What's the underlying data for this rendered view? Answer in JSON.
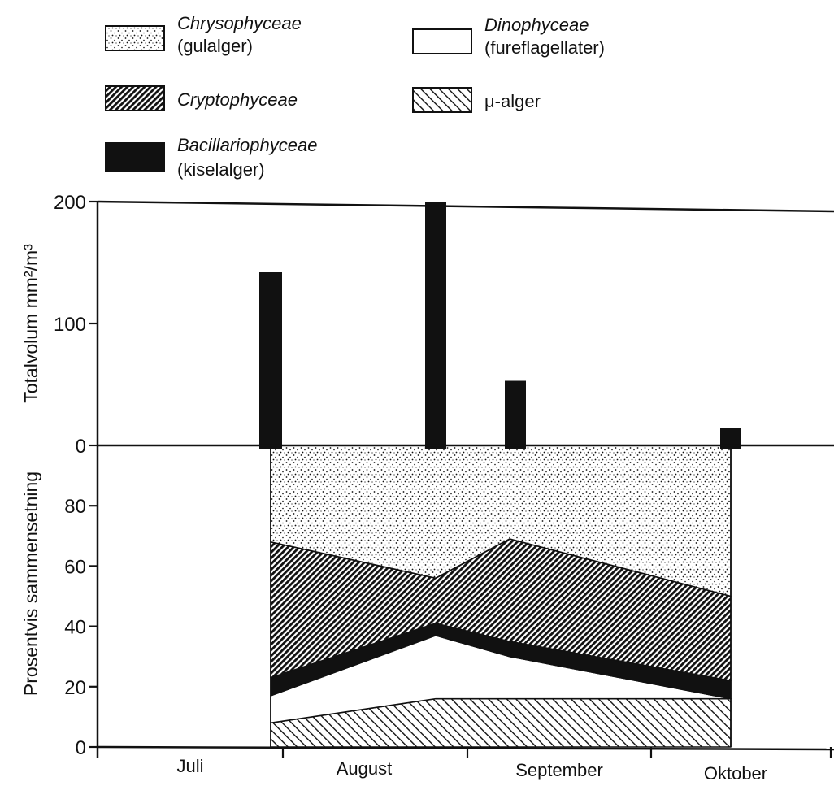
{
  "legend": [
    {
      "key": "chrysophyceae",
      "name": "Chrysophyceae",
      "sub": "(gulalger)",
      "pattern": "dots"
    },
    {
      "key": "dinophyceae",
      "name": "Dinophyceae",
      "sub": "(fureflagellater)",
      "pattern": "white"
    },
    {
      "key": "cryptophyceae",
      "name": "Cryptophyceae",
      "sub": "",
      "pattern": "dense-hatch"
    },
    {
      "key": "my_alger",
      "name": "μ-alger",
      "sub": "",
      "pattern": "light-hatch",
      "name_italic": false
    },
    {
      "key": "bacillariophyceae",
      "name": "Bacillariophyceae",
      "sub": "(kiselalger)",
      "pattern": "black"
    }
  ],
  "colors": {
    "ink": "#111111",
    "paper": "#ffffff"
  },
  "chart_data": [
    {
      "type": "bar",
      "ylabel": "Totalvolum mm²/m³",
      "ylim": [
        0,
        200
      ],
      "yticks": [
        "0",
        "100",
        "200"
      ],
      "x_axis": "months",
      "series": [
        {
          "name": "Bacillariophyceae",
          "points": [
            {
              "x": "late July",
              "y": 142
            },
            {
              "x": "late August",
              "y": 200
            },
            {
              "x": "early September",
              "y": 53
            },
            {
              "x": "mid October",
              "y": 14
            }
          ]
        }
      ]
    },
    {
      "type": "area",
      "ylabel": "Prosentvis sammensetning",
      "ylim": [
        0,
        100
      ],
      "yticks": [
        "0",
        "20",
        "40",
        "60",
        "80"
      ],
      "stacked": true,
      "sample_dates": [
        "late July",
        "late August",
        "mid September",
        "mid October"
      ],
      "cumulative_boundaries": [
        {
          "series": "μ-alger",
          "top": [
            8,
            16,
            16,
            16
          ]
        },
        {
          "series": "Dinophyceae",
          "top": [
            17,
            37,
            30,
            16
          ]
        },
        {
          "series": "Bacillariophyceae",
          "top": [
            23,
            41,
            35,
            22
          ]
        },
        {
          "series": "Cryptophyceae",
          "top": [
            68,
            56,
            69,
            50
          ]
        },
        {
          "series": "Chrysophyceae",
          "top": [
            100,
            100,
            100,
            100
          ]
        }
      ]
    }
  ],
  "x_axis": {
    "months": [
      "Juli",
      "August",
      "September",
      "Oktober"
    ]
  }
}
